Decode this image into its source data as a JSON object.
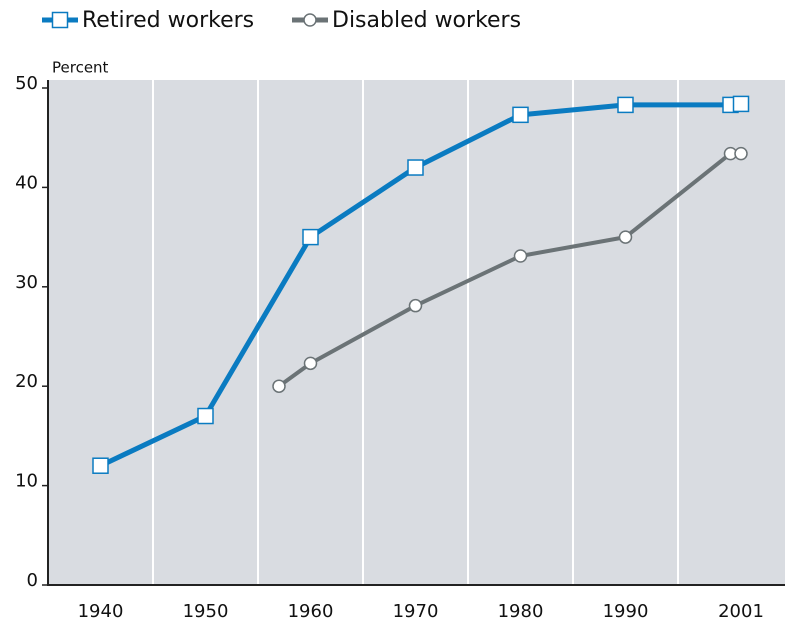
{
  "chart_data": {
    "type": "line",
    "y_label": "Percent",
    "series": [
      {
        "name": "Retired workers",
        "color": "#0a7bc1",
        "marker": "square",
        "x": [
          1940,
          1950,
          1960,
          1970,
          1980,
          1990,
          2000,
          2001
        ],
        "values": [
          12,
          17,
          35,
          42,
          47.3,
          48.3,
          48.3,
          48.4
        ]
      },
      {
        "name": "Disabled workers",
        "color": "#6b7376",
        "marker": "circle",
        "x": [
          1957,
          1960,
          1970,
          1980,
          1990,
          2000,
          2001
        ],
        "values": [
          20,
          22.3,
          28.1,
          33.1,
          35,
          43.4,
          43.4
        ]
      }
    ],
    "xlim": [
      1935,
      2005
    ],
    "xticks": [
      1940,
      1950,
      1960,
      1970,
      1980,
      1990,
      2001
    ],
    "x_gridlines": [
      1945,
      1955,
      1965,
      1975,
      1985,
      1995
    ],
    "ylim": [
      0,
      50
    ],
    "yticks": [
      0,
      10,
      20,
      30,
      40,
      50
    ],
    "legend": "top-left"
  }
}
